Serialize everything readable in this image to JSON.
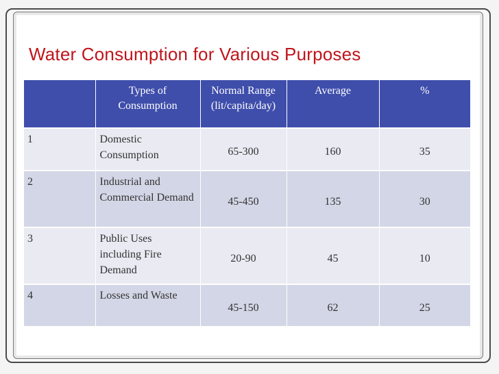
{
  "title": "Water Consumption for Various Purposes",
  "table": {
    "headers": [
      "",
      "Types of Consumption",
      "Normal Range (lit/capita/day)",
      "Average",
      "%"
    ],
    "rows": [
      [
        "1",
        "Domestic Consumption",
        "65-300",
        "160",
        "35"
      ],
      [
        "2",
        "Industrial and Commercial Demand",
        "45-450",
        "135",
        "30"
      ],
      [
        "3",
        "Public Uses including Fire Demand",
        "20-90",
        "45",
        "10"
      ],
      [
        "4",
        "Losses and Waste",
        "45-150",
        "62",
        "25"
      ]
    ]
  },
  "colors": {
    "title": "#c0141b",
    "header_bg": "#3f4eab",
    "row_light": "#e9eaf2",
    "row_dark": "#d3d6e6"
  }
}
